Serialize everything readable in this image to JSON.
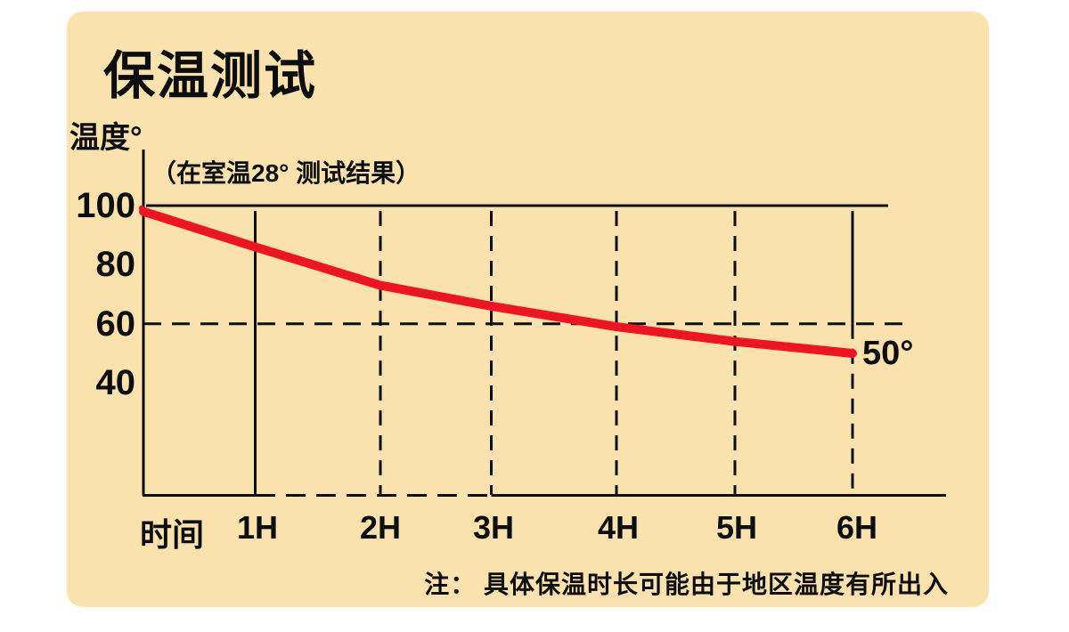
{
  "page": {
    "canvas_background": "#ffffff",
    "panel_background": "#FAE2AE",
    "text_color": "#0d0d0d"
  },
  "header": {
    "title": "保温测试"
  },
  "chart_data": {
    "type": "line",
    "title": "保温测试",
    "ylabel": "温度°",
    "subtitle": "（在室温28° 测试结果）",
    "y_ticks": [
      100,
      80,
      60,
      40
    ],
    "ylim": [
      40,
      100
    ],
    "x_categories": [
      "时间",
      "1H",
      "2H",
      "3H",
      "4H",
      "5H",
      "6H"
    ],
    "series": [
      {
        "name": "温度",
        "values": [
          98,
          86,
          73,
          66,
          59,
          54,
          50
        ]
      }
    ],
    "end_label": "50°",
    "note": "注： 具体保温时长可能由于地区温度有所出入",
    "line_color": "#EE1422",
    "axis_color": "#0d0d0d",
    "grid": "horizontal line at 100 solid, at 60 dashed; vertical guides mixed solid/dashed",
    "legend": "none"
  }
}
